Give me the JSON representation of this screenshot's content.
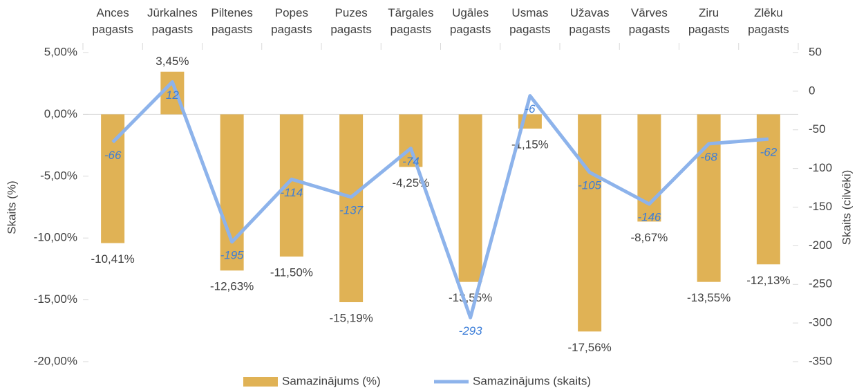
{
  "chart_data": {
    "type": "bar-line",
    "categories": [
      "Ances pagasts",
      "Jūrkalnes pagasts",
      "Piltenes pagasts",
      "Popes pagasts",
      "Puzes pagasts",
      "Tārgales pagasts",
      "Ugāles pagasts",
      "Usmas pagasts",
      "Užavas pagasts",
      "Vārves pagasts",
      "Ziru pagasts",
      "Zlēku pagasts"
    ],
    "series": [
      {
        "name": "Samazinājums (%)",
        "type": "bar",
        "axis": "y",
        "color": "#e0b255",
        "values": [
          -10.41,
          3.45,
          -12.63,
          -11.5,
          -15.19,
          -4.25,
          -13.55,
          -1.15,
          -17.56,
          -8.67,
          -13.55,
          -12.13
        ],
        "value_labels": [
          "-10,41%",
          "3,45%",
          "-12,63%",
          "-11,50%",
          "-15,19%",
          "-4,25%",
          "-13,55%",
          "-1,15%",
          "-17,56%",
          "-8,67%",
          "-13,55%",
          "-12,13%"
        ]
      },
      {
        "name": "Samazinājums (skaits)",
        "type": "line",
        "axis": "y2",
        "color": "#8db3eb",
        "label_color": "#3b7dd8",
        "values": [
          -66,
          12,
          -195,
          -114,
          -137,
          -74,
          -293,
          -6,
          -105,
          -146,
          -68,
          -62
        ]
      }
    ],
    "ylabel": "Skaits (%)",
    "y2label": "Skaits (cilvēki)",
    "ylim": [
      -20,
      5
    ],
    "yticks": [
      {
        "value": 5,
        "label": "5,00%"
      },
      {
        "value": 0,
        "label": "0,00%"
      },
      {
        "value": -5,
        "label": "-5,00%"
      },
      {
        "value": -10,
        "label": "-10,00%"
      },
      {
        "value": -15,
        "label": "-15,00%"
      },
      {
        "value": -20,
        "label": "-20,00%"
      }
    ],
    "y2lim": [
      -350,
      50
    ],
    "y2ticks": [
      50,
      0,
      -50,
      -100,
      -150,
      -200,
      -250,
      -300,
      -350
    ],
    "grid": false,
    "legend": "bottom"
  }
}
